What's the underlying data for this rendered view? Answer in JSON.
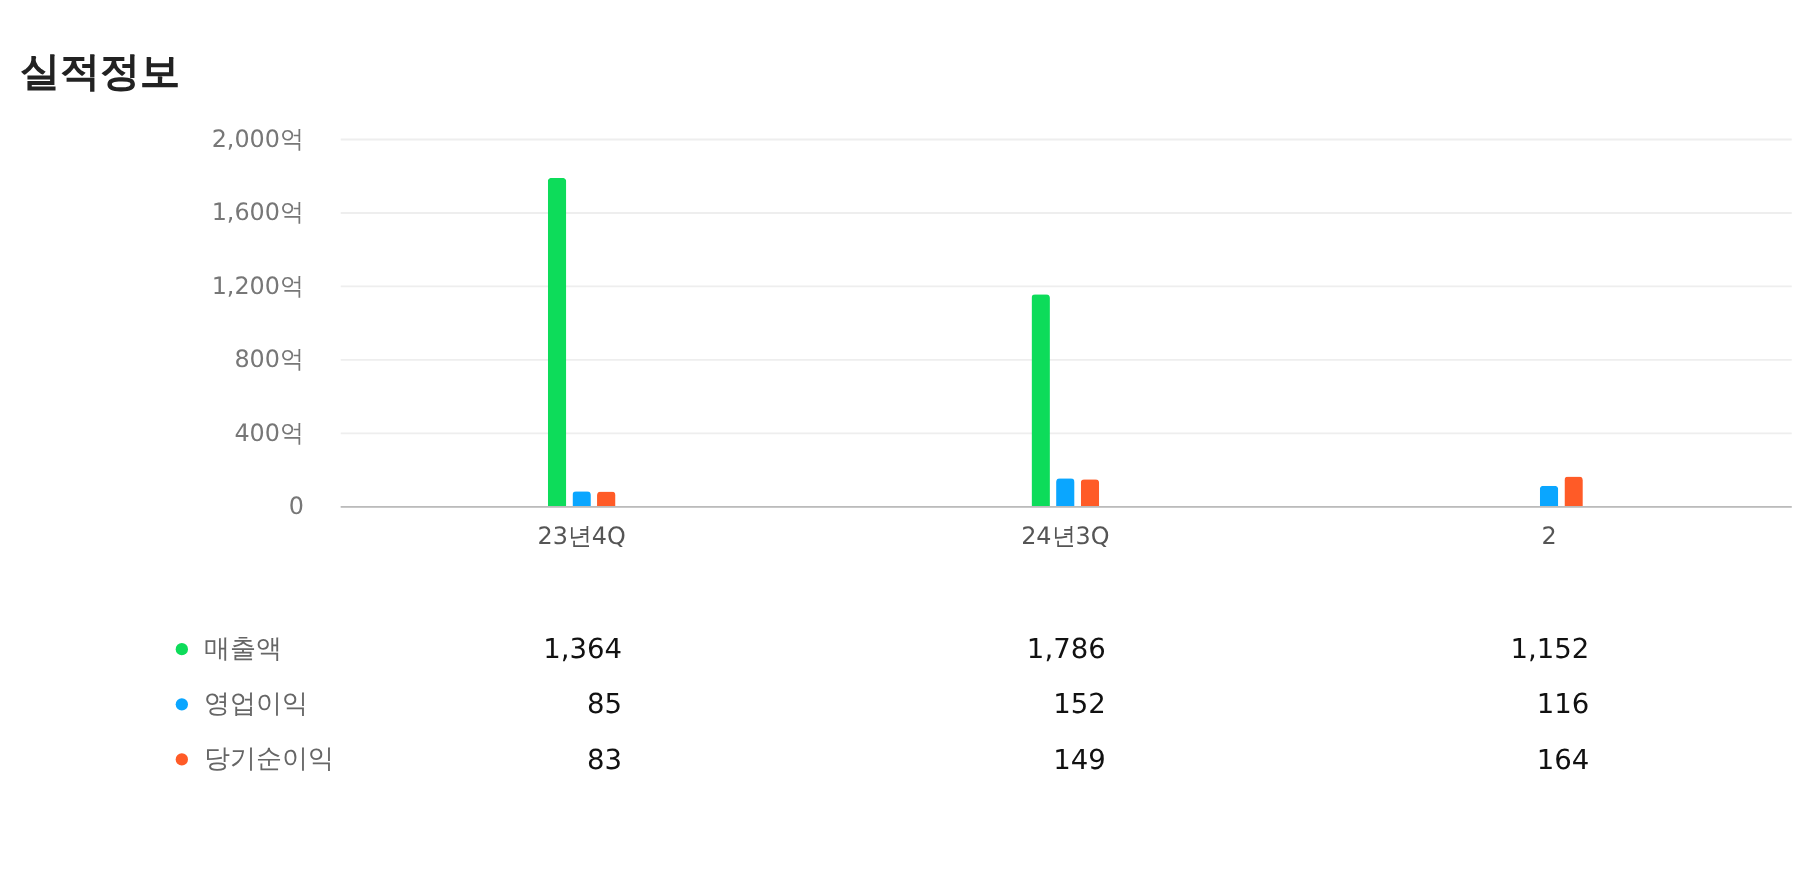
{
  "chart_data": {
    "type": "bar",
    "title": "실적정보",
    "categories": [
      "23년4Q",
      "24년3Q",
      "2"
    ],
    "series": [
      {
        "name": "매출액",
        "color": "#0ddc5a",
        "values": [
          1786,
          1152,
          null
        ]
      },
      {
        "name": "영업이익",
        "color": "#0aa6ff",
        "values": [
          80,
          150,
          110
        ]
      },
      {
        "name": "당기순이익",
        "color": "#ff5b27",
        "values": [
          78,
          145,
          160
        ]
      }
    ],
    "ylim": [
      0,
      2000
    ],
    "yticks": [
      {
        "value": 0,
        "label": "0"
      },
      {
        "value": 400,
        "label": "400억"
      },
      {
        "value": 800,
        "label": "800억"
      },
      {
        "value": 1200,
        "label": "1,200억"
      },
      {
        "value": 1600,
        "label": "1,600억"
      },
      {
        "value": 2000,
        "label": "2,000억"
      }
    ],
    "grid": "y",
    "legend": "bottom left",
    "annotations": [
      "1,364",
      "1,786",
      "1,152",
      "85",
      "152",
      "116",
      "83",
      "149",
      "164"
    ]
  }
}
